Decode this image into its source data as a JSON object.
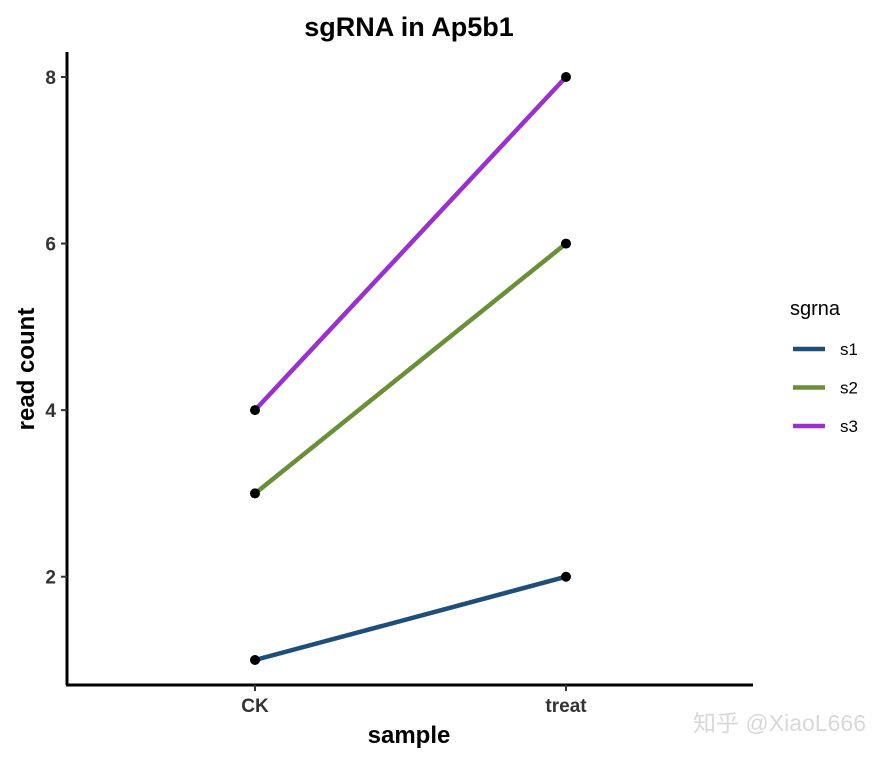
{
  "chart_data": {
    "type": "line",
    "title": "sgRNA in Ap5b1",
    "xlabel": "sample",
    "ylabel": "read count",
    "categories": [
      "CK",
      "treat"
    ],
    "y_ticks": [
      2,
      4,
      6,
      8
    ],
    "ylim": [
      0.7,
      8.3
    ],
    "grid": false,
    "legend": {
      "title": "sgrna",
      "placement": "right"
    },
    "series": [
      {
        "name": "s1",
        "values": [
          1,
          2
        ],
        "color": "#1f4e79"
      },
      {
        "name": "s2",
        "values": [
          3,
          6
        ],
        "color": "#6b8e3a"
      },
      {
        "name": "s3",
        "values": [
          4,
          8
        ],
        "color": "#9932cc"
      }
    ]
  },
  "watermark": "知乎 @XiaoL666"
}
